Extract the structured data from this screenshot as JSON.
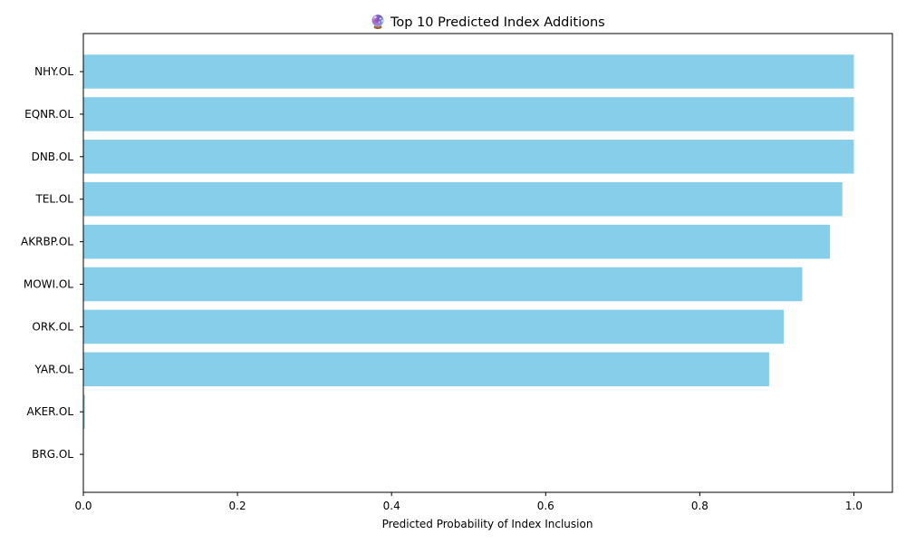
{
  "chart_data": {
    "type": "bar",
    "orientation": "horizontal",
    "title": "🔮 Top 10 Predicted Index Additions",
    "xlabel": "Predicted Probability of Index Inclusion",
    "ylabel": "",
    "xlim": [
      0.0,
      1.05
    ],
    "x_ticks": [
      0.0,
      0.2,
      0.4,
      0.6,
      0.8,
      1.0
    ],
    "x_tick_labels": [
      "0.0",
      "0.2",
      "0.4",
      "0.6",
      "0.8",
      "1.0"
    ],
    "categories": [
      "NHY.OL",
      "EQNR.OL",
      "DNB.OL",
      "TEL.OL",
      "AKRBP.OL",
      "MOWI.OL",
      "ORK.OL",
      "YAR.OL",
      "AKER.OL",
      "BRG.OL"
    ],
    "values": [
      1.0,
      1.0,
      1.0,
      0.985,
      0.969,
      0.933,
      0.909,
      0.89,
      0.002,
      0.0
    ],
    "bar_color": "#87CEEB",
    "grid": false,
    "legend": "none"
  }
}
